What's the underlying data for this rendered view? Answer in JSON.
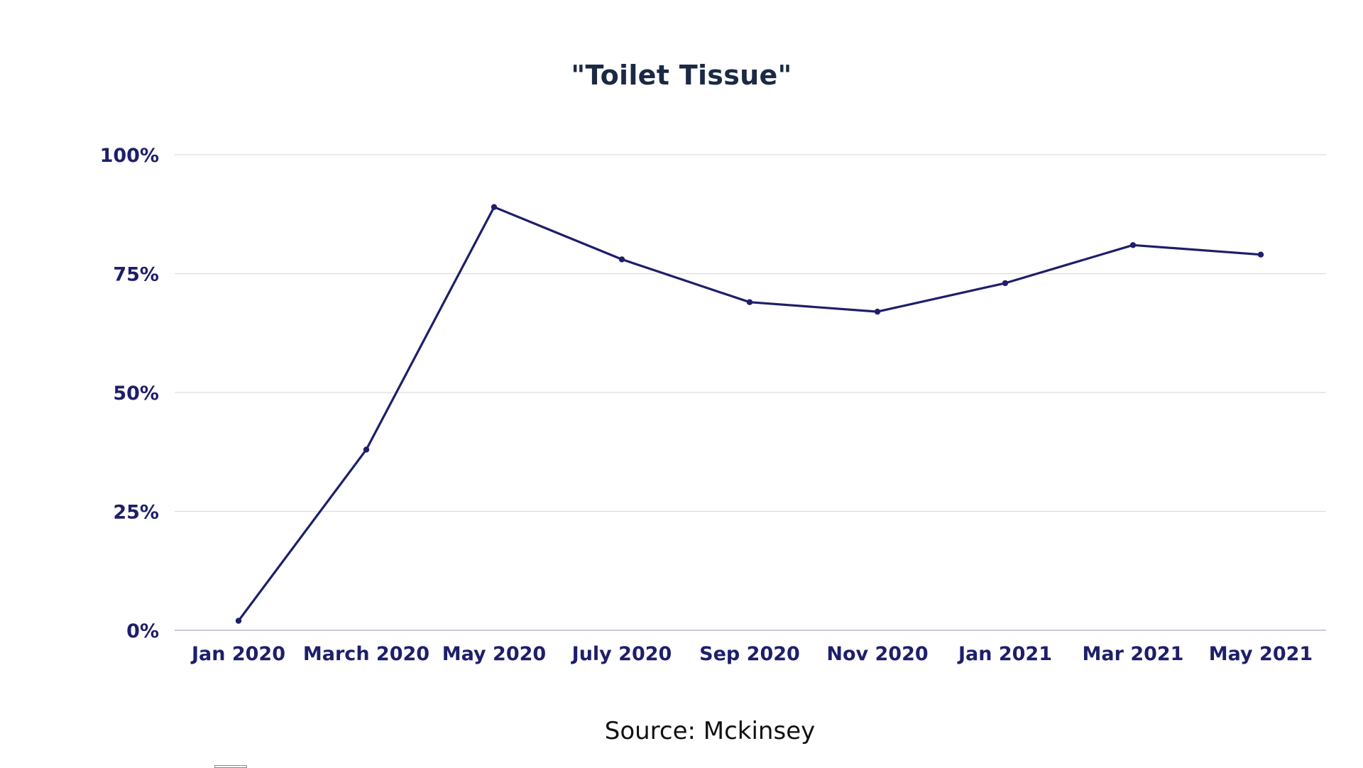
{
  "chart_data": {
    "type": "line",
    "title": "\"Toilet Tissue\"",
    "source": "Source: Mckinsey",
    "categories": [
      "Jan 2020",
      "March 2020",
      "May 2020",
      "July 2020",
      "Sep 2020",
      "Nov 2020",
      "Jan 2021",
      "Mar 2021",
      "May 2021"
    ],
    "series": [
      {
        "values": [
          2,
          38,
          89,
          78,
          69,
          67,
          73,
          81,
          79
        ]
      }
    ],
    "ylim": [
      0,
      100
    ],
    "yticks": [
      0,
      25,
      50,
      75,
      100
    ],
    "ytick_labels": [
      "0%",
      "25%",
      "50%",
      "75%",
      "100%"
    ],
    "xlabel": "",
    "ylabel": "",
    "grid": true,
    "legend": "bottom-left",
    "colors": {
      "line": "#1d1f6a",
      "grid": "#dddddd",
      "axis": "#b8b8c8",
      "tick_text": "#1d1f6a",
      "title": "#1b2945"
    }
  }
}
